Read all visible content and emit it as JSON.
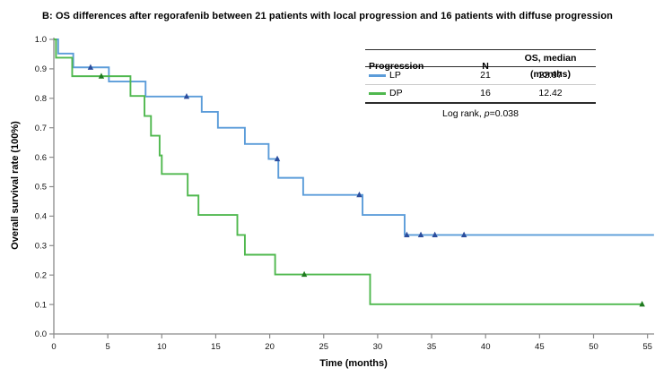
{
  "title": "B: OS differences after regorafenib between 21 patients with local progression and 16 patients with diffuse progression",
  "chart_data": {
    "type": "line",
    "subtype": "kaplan-meier-step",
    "grid": false,
    "x_axis": {
      "label": "Time (months)",
      "range": [
        0,
        55.6
      ],
      "ticks": [
        0,
        5,
        10,
        15,
        20,
        25,
        30,
        35,
        40,
        45,
        50,
        55
      ],
      "tick_labels": [
        "0",
        "5",
        "10",
        "15",
        "20",
        "25",
        "30",
        "35",
        "40",
        "45",
        "50",
        "55"
      ]
    },
    "y_axis": {
      "label": "Overall survival rate (100%)",
      "range": [
        0,
        1
      ],
      "ticks": [
        0,
        0.1,
        0.2,
        0.3,
        0.4,
        0.5,
        0.6,
        0.7,
        0.8,
        0.9,
        1.0
      ],
      "tick_labels": [
        "0.0",
        "0.1",
        "0.2",
        "0.3",
        "0.4",
        "0.5",
        "0.6",
        "0.7",
        "0.8",
        "0.9",
        "1.0"
      ]
    },
    "series": [
      {
        "name": "LP",
        "color": "#5b9cd9",
        "censor_color": "#2b4d9d",
        "start_value": 1.0,
        "drops": [
          [
            0.4,
            0.952
          ],
          [
            1.8,
            0.905
          ],
          [
            5.1,
            0.857
          ],
          [
            8.5,
            0.806
          ],
          [
            13.7,
            0.754
          ],
          [
            15.2,
            0.7
          ],
          [
            17.7,
            0.645
          ],
          [
            19.9,
            0.594
          ],
          [
            20.8,
            0.53
          ],
          [
            23.1,
            0.472
          ],
          [
            28.6,
            0.404
          ],
          [
            32.5,
            0.336
          ]
        ],
        "end_time": 55.6,
        "censors": [
          [
            3.4,
            0.905
          ],
          [
            12.3,
            0.806
          ],
          [
            20.7,
            0.594
          ],
          [
            28.3,
            0.472
          ],
          [
            32.7,
            0.336
          ],
          [
            34.0,
            0.336
          ],
          [
            35.3,
            0.336
          ],
          [
            38.0,
            0.336
          ]
        ]
      },
      {
        "name": "DP",
        "color": "#4fb84e",
        "censor_color": "#1f7a1f",
        "start_value": 1.0,
        "drops": [
          [
            0.2,
            0.938
          ],
          [
            1.7,
            0.875
          ],
          [
            7.1,
            0.808
          ],
          [
            8.4,
            0.74
          ],
          [
            9.0,
            0.673
          ],
          [
            9.8,
            0.606
          ],
          [
            10.0,
            0.543
          ],
          [
            12.4,
            0.47
          ],
          [
            13.4,
            0.404
          ],
          [
            17.0,
            0.336
          ],
          [
            17.7,
            0.269
          ],
          [
            20.5,
            0.202
          ],
          [
            29.3,
            0.101
          ]
        ],
        "end_time": 54.5,
        "censors": [
          [
            4.4,
            0.875
          ],
          [
            23.2,
            0.202
          ],
          [
            54.5,
            0.101
          ]
        ]
      }
    ],
    "annotation": "Log rank, p=0.038"
  },
  "legend_table": {
    "headers": [
      "Progression",
      "N",
      "OS, median (months)"
    ],
    "rows": [
      {
        "name": "LP",
        "n": "21",
        "os_median": "22.97",
        "color": "#5b9cd9"
      },
      {
        "name": "DP",
        "n": "16",
        "os_median": "12.42",
        "color": "#4fb84e"
      }
    ],
    "footer": {
      "prefix": "Log rank, ",
      "italic": "p",
      "suffix": "=0.038"
    }
  }
}
